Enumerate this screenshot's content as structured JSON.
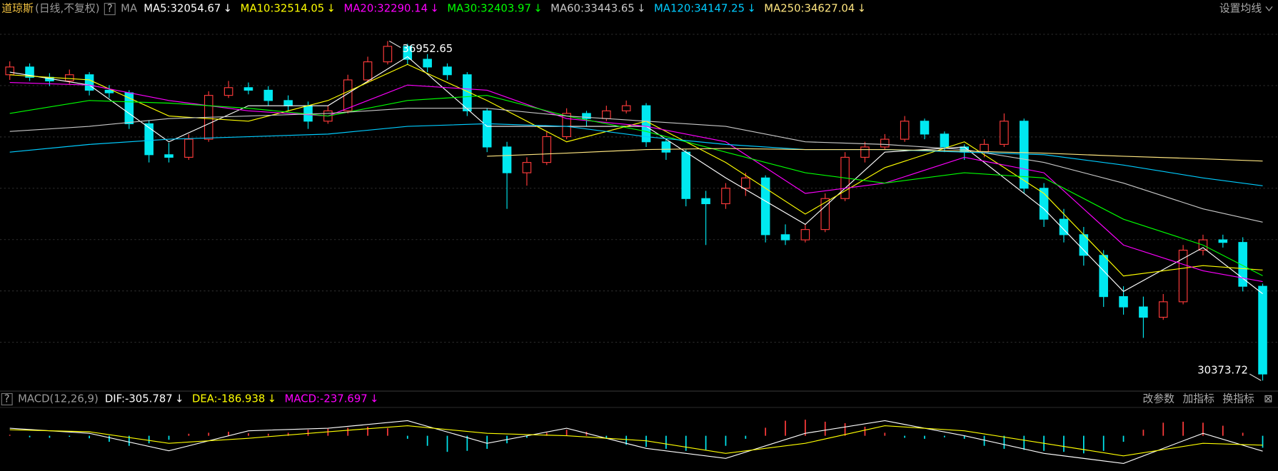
{
  "header": {
    "title": "道琼斯",
    "subtitle": "(日线,不复权)",
    "help": "?",
    "ma_label": "MA",
    "settings": "设置均线"
  },
  "chart_data": [
    {
      "type": "candlestick",
      "ylim": [
        30200,
        37400
      ],
      "up_color": "#ff3b3b",
      "down_color": "#00e8f0",
      "candles": [
        [
          36300,
          36560,
          36200,
          36450
        ],
        [
          36450,
          36520,
          36180,
          36250
        ],
        [
          36250,
          36330,
          36080,
          36180
        ],
        [
          36180,
          36400,
          36120,
          36300
        ],
        [
          36300,
          36350,
          35900,
          36000
        ],
        [
          36000,
          36100,
          35850,
          35950
        ],
        [
          35950,
          36000,
          35250,
          35350
        ],
        [
          35350,
          35420,
          34600,
          34750
        ],
        [
          34750,
          34980,
          34600,
          34700
        ],
        [
          34700,
          35150,
          34650,
          35050
        ],
        [
          35050,
          35980,
          35000,
          35900
        ],
        [
          35900,
          36180,
          35850,
          36050
        ],
        [
          36050,
          36150,
          35920,
          36000
        ],
        [
          36000,
          36080,
          35700,
          35800
        ],
        [
          35800,
          35900,
          35600,
          35700
        ],
        [
          35700,
          35780,
          35250,
          35400
        ],
        [
          35400,
          35700,
          35350,
          35600
        ],
        [
          35600,
          36300,
          35550,
          36200
        ],
        [
          36200,
          36650,
          36150,
          36550
        ],
        [
          36550,
          36952.65,
          36500,
          36850
        ],
        [
          36850,
          36900,
          36500,
          36600
        ],
        [
          36600,
          36700,
          36350,
          36450
        ],
        [
          36450,
          36520,
          36200,
          36300
        ],
        [
          36300,
          36350,
          35500,
          35600
        ],
        [
          35600,
          35650,
          34800,
          34900
        ],
        [
          34900,
          35000,
          33700,
          34400
        ],
        [
          34400,
          34700,
          34150,
          34600
        ],
        [
          34600,
          35200,
          34550,
          35100
        ],
        [
          35100,
          35650,
          35050,
          35550
        ],
        [
          35550,
          35600,
          35300,
          35450
        ],
        [
          35450,
          35700,
          35400,
          35600
        ],
        [
          35600,
          35800,
          35550,
          35700
        ],
        [
          35700,
          35750,
          34900,
          35000
        ],
        [
          35000,
          35050,
          34650,
          34800
        ],
        [
          34800,
          34850,
          33750,
          33900
        ],
        [
          33900,
          34050,
          33000,
          33800
        ],
        [
          33800,
          34200,
          33700,
          34100
        ],
        [
          34100,
          34400,
          33950,
          34300
        ],
        [
          34300,
          34350,
          33050,
          33200
        ],
        [
          33200,
          33400,
          33000,
          33100
        ],
        [
          33100,
          33400,
          33050,
          33300
        ],
        [
          33300,
          34000,
          33250,
          33900
        ],
        [
          33900,
          34800,
          33850,
          34700
        ],
        [
          34700,
          35000,
          34600,
          34900
        ],
        [
          34900,
          35150,
          34850,
          35050
        ],
        [
          35050,
          35500,
          35000,
          35400
        ],
        [
          35400,
          35450,
          35050,
          35150
        ],
        [
          35150,
          35200,
          34800,
          34900
        ],
        [
          34900,
          34950,
          34650,
          34800
        ],
        [
          34800,
          35050,
          34700,
          34950
        ],
        [
          34950,
          35550,
          34900,
          35400
        ],
        [
          35400,
          35450,
          34000,
          34100
        ],
        [
          34100,
          34200,
          33350,
          33500
        ],
        [
          33500,
          33700,
          33050,
          33200
        ],
        [
          33200,
          33350,
          32600,
          32800
        ],
        [
          32800,
          32900,
          31800,
          32000
        ],
        [
          32000,
          32200,
          31650,
          31800
        ],
        [
          31800,
          32000,
          31200,
          31600
        ],
        [
          31600,
          32050,
          31550,
          31900
        ],
        [
          31900,
          33000,
          31850,
          32900
        ],
        [
          32900,
          33200,
          32800,
          33100
        ],
        [
          33100,
          33200,
          32950,
          33050
        ],
        [
          33050,
          33150,
          32100,
          32200
        ],
        [
          32200,
          32250,
          30373.72,
          30500
        ]
      ],
      "ma_x": [
        0,
        4,
        8,
        12,
        16,
        20,
        24,
        28,
        32,
        36,
        40,
        44,
        48,
        52,
        56,
        60,
        63
      ],
      "series": [
        {
          "name": "MA5:32054.67",
          "trend": "↓",
          "color": "#ffffff",
          "values": [
            36350,
            36100,
            35000,
            35700,
            35700,
            36650,
            35300,
            35300,
            35300,
            34300,
            33400,
            34800,
            34900,
            33700,
            32100,
            32950,
            32054.67
          ]
        },
        {
          "name": "MA10:32514.05",
          "trend": "↓",
          "color": "#ffff00",
          "values": [
            36300,
            36200,
            35500,
            35400,
            35800,
            36500,
            35800,
            35000,
            35400,
            34600,
            33600,
            34500,
            35000,
            34000,
            32400,
            32600,
            32514.05
          ]
        },
        {
          "name": "MA20:32290.14",
          "trend": "↓",
          "color": "#ff00ff",
          "values": [
            36150,
            36100,
            35800,
            35600,
            35500,
            36100,
            36000,
            35450,
            35300,
            35000,
            34000,
            34200,
            34700,
            34400,
            33000,
            32500,
            32290.14
          ]
        },
        {
          "name": "MA30:32403.97",
          "trend": "↓",
          "color": "#00ff00",
          "values": [
            35550,
            35800,
            35750,
            35650,
            35500,
            35800,
            35900,
            35500,
            35200,
            34800,
            34400,
            34200,
            34400,
            34300,
            33500,
            33000,
            32403.97
          ]
        },
        {
          "name": "MA60:33443.65",
          "trend": "↓",
          "color": "#c8c8c8",
          "values": [
            35200,
            35300,
            35450,
            35500,
            35550,
            35650,
            35650,
            35500,
            35400,
            35300,
            35000,
            34950,
            34850,
            34600,
            34200,
            33700,
            33443.65
          ]
        },
        {
          "name": "MA120:34147.25",
          "trend": "↓",
          "color": "#00ccff",
          "values": [
            34800,
            34950,
            35050,
            35100,
            35150,
            35300,
            35350,
            35300,
            35100,
            34950,
            34850,
            34850,
            34800,
            34750,
            34550,
            34300,
            34147.25
          ]
        },
        {
          "name": "MA250:34627.04",
          "trend": "↓",
          "color": "#ffe680",
          "values": [
            null,
            null,
            null,
            null,
            null,
            null,
            34720,
            34780,
            34850,
            34870,
            34850,
            34850,
            34820,
            34780,
            34720,
            34670,
            34627.04
          ]
        }
      ],
      "max_label": 36952.65,
      "min_label": 30373.72
    },
    {
      "type": "macd",
      "title": "MACD(12,26,9)",
      "ylim": [
        -700,
        500
      ],
      "help": "?",
      "buttons": [
        "改参数",
        "加指标",
        "换指标"
      ],
      "close": "⊠",
      "x": [
        0,
        4,
        8,
        12,
        16,
        20,
        24,
        28,
        32,
        36,
        40,
        44,
        48,
        52,
        56,
        60,
        63
      ],
      "series": [
        {
          "name": "DIF:-305.787",
          "trend": "↓",
          "color": "#ffffff",
          "values": [
            150,
            50,
            -300,
            100,
            150,
            300,
            -150,
            150,
            -250,
            -450,
            50,
            300,
            0,
            -350,
            -550,
            50,
            -305.787
          ]
        },
        {
          "name": "DEA:-186.938",
          "trend": "↓",
          "color": "#ffff00",
          "values": [
            120,
            80,
            -150,
            -50,
            80,
            200,
            50,
            0,
            -100,
            -350,
            -150,
            200,
            100,
            -150,
            -400,
            -150,
            -186.938
          ]
        }
      ],
      "histogram": {
        "name": "MACD:-237.697",
        "trend": "↓",
        "color": "#ff00ff",
        "up_color": "#ff3b3b",
        "down_color": "#00e8f0",
        "values": [
          20,
          -30,
          -40,
          -20,
          -50,
          -120,
          -200,
          -150,
          -80,
          40,
          60,
          80,
          50,
          40,
          60,
          120,
          140,
          160,
          180,
          150,
          -60,
          -200,
          -320,
          -300,
          -260,
          -150,
          -40,
          60,
          120,
          80,
          -60,
          -180,
          -220,
          -260,
          -300,
          -280,
          -200,
          -60,
          160,
          300,
          320,
          280,
          250,
          180,
          60,
          -40,
          -60,
          -30,
          -60,
          -200,
          -260,
          -280,
          -300,
          -320,
          -350,
          -300,
          -120,
          120,
          260,
          280,
          260,
          200,
          60,
          -237.697
        ]
      }
    }
  ]
}
